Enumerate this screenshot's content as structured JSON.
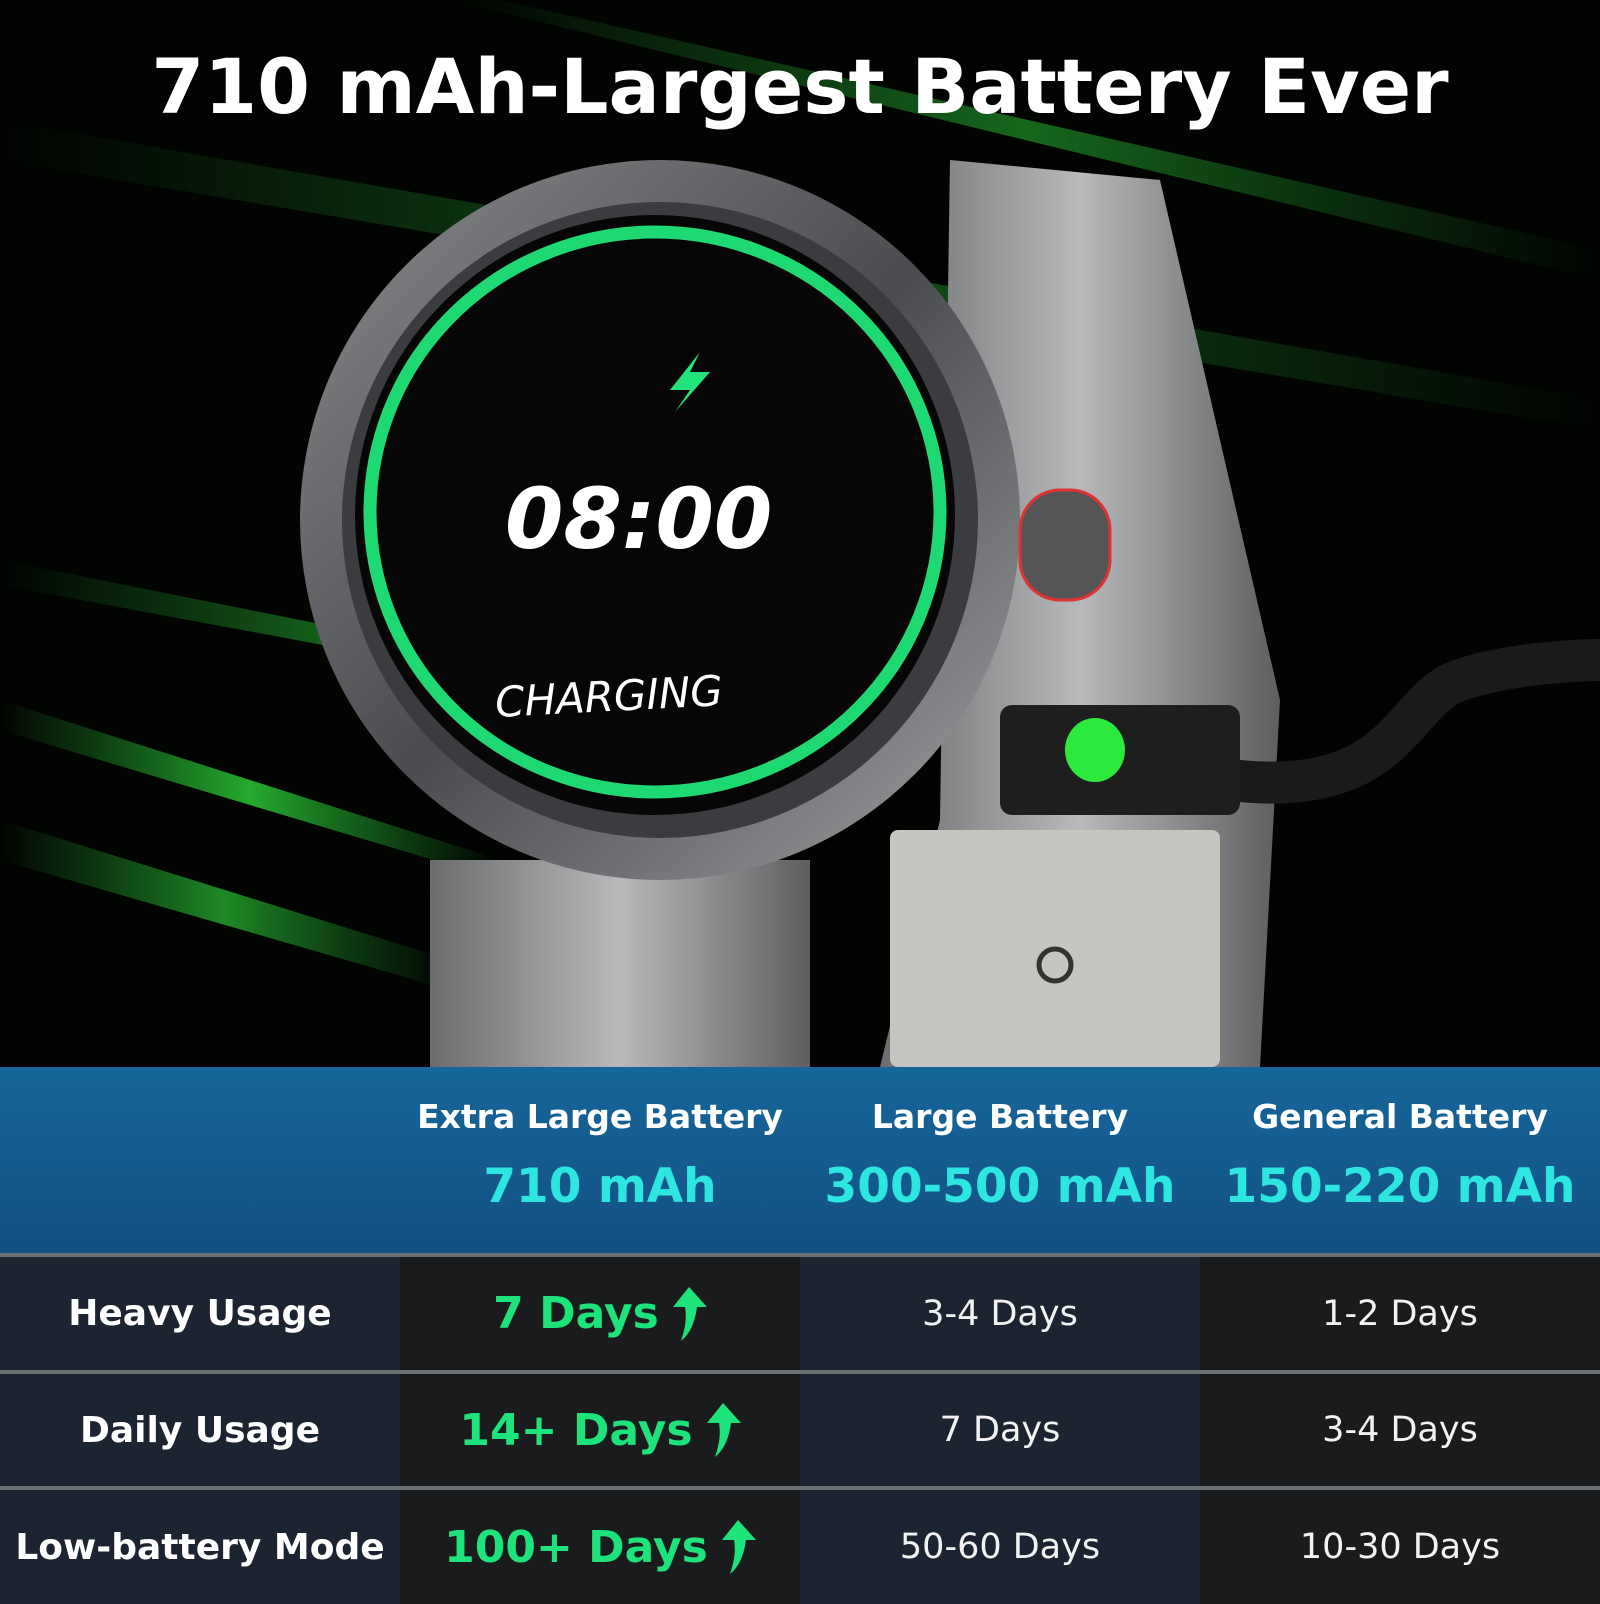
{
  "title": "710 mAh-Largest Battery Ever",
  "watch_screen": {
    "time": "08:00",
    "status": "CHARGING",
    "icon": "lightning-bolt-icon"
  },
  "colors": {
    "accent_green": "#1ee37a",
    "capacity_cyan": "#2ee6e0",
    "header_blue": "#16669a"
  },
  "table": {
    "columns": [
      {
        "name": "Extra Large Battery",
        "capacity": "710 mAh"
      },
      {
        "name": "Large Battery",
        "capacity": "300-500 mAh"
      },
      {
        "name": "General Battery",
        "capacity": "150-220 mAh"
      }
    ],
    "rows": [
      {
        "label": "Heavy Usage",
        "values": [
          "7 Days",
          "3-4 Days",
          "1-2 Days"
        ]
      },
      {
        "label": "Daily Usage",
        "values": [
          "14+ Days",
          "7 Days",
          "3-4 Days"
        ]
      },
      {
        "label": "Low-battery Mode",
        "values": [
          "100+ Days",
          "50-60 Days",
          "10-30 Days"
        ]
      }
    ]
  }
}
